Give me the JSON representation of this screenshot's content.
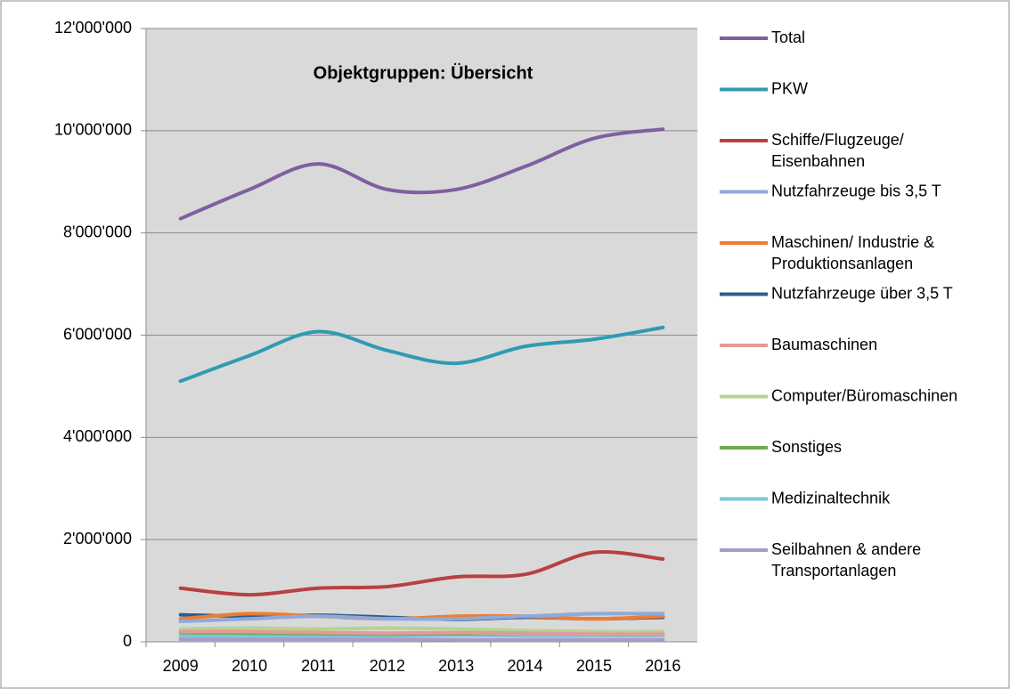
{
  "chart_data": {
    "type": "line",
    "title": "Objektgruppen: Übersicht",
    "categories": [
      "2009",
      "2010",
      "2011",
      "2012",
      "2013",
      "2014",
      "2015",
      "2016"
    ],
    "ylim": [
      0,
      12000000
    ],
    "yticks": [
      0,
      {
        "value": 2000000,
        "label": "2'000'000"
      },
      {
        "value": 4000000,
        "label": "4'000'000"
      },
      {
        "value": 6000000,
        "label": "6'000'000"
      },
      {
        "value": 8000000,
        "label": "8'000'000"
      },
      {
        "value": 10000000,
        "label": "10'000'000"
      },
      {
        "value": 12000000,
        "label": "12'000'000"
      }
    ],
    "grid": true,
    "smooth": true,
    "legend": "right",
    "series": [
      {
        "name": "Total",
        "color": "#7f5fa0",
        "values": [
          8280000,
          8850000,
          9350000,
          8850000,
          8850000,
          9300000,
          9850000,
          10030000
        ]
      },
      {
        "name": "PKW",
        "color": "#2e9bb4",
        "values": [
          5100000,
          5600000,
          6070000,
          5700000,
          5450000,
          5780000,
          5920000,
          6150000
        ]
      },
      {
        "name": "Schiffe/Flugzeuge/ Eisenbahnen",
        "color": "#b94040",
        "values": [
          1050000,
          920000,
          1050000,
          1080000,
          1270000,
          1320000,
          1750000,
          1620000
        ]
      },
      {
        "name": "Nutzfahrzeuge bis 3,5 T",
        "color": "#8eaadb",
        "values": [
          400000,
          450000,
          500000,
          450000,
          450000,
          500000,
          550000,
          550000
        ]
      },
      {
        "name": "Maschinen/ Industrie & Produktionsanlagen",
        "color": "#ed7d31",
        "values": [
          450000,
          550000,
          500000,
          450000,
          500000,
          500000,
          450000,
          500000
        ]
      },
      {
        "name": "Nutzfahrzeuge über 3,5 T",
        "color": "#2f5c8f",
        "values": [
          530000,
          500000,
          520000,
          480000,
          440000,
          480000,
          450000,
          480000
        ]
      },
      {
        "name": "Baumaschinen",
        "color": "#e39a9a",
        "values": [
          200000,
          200000,
          180000,
          170000,
          180000,
          170000,
          150000,
          150000
        ]
      },
      {
        "name": "Computer/Büromaschinen",
        "color": "#b5d38f",
        "values": [
          250000,
          270000,
          250000,
          270000,
          250000,
          220000,
          200000,
          200000
        ]
      },
      {
        "name": "Sonstiges",
        "color": "#70ad47",
        "values": [
          180000,
          170000,
          160000,
          150000,
          160000,
          170000,
          160000,
          170000
        ]
      },
      {
        "name": "Medizinaltechnik",
        "color": "#7fc4de",
        "values": [
          120000,
          120000,
          120000,
          120000,
          130000,
          120000,
          120000,
          120000
        ]
      },
      {
        "name": "Seilbahnen & andere Transportanlagen",
        "color": "#a99bc8",
        "values": [
          50000,
          50000,
          50000,
          50000,
          40000,
          40000,
          40000,
          40000
        ]
      }
    ]
  }
}
